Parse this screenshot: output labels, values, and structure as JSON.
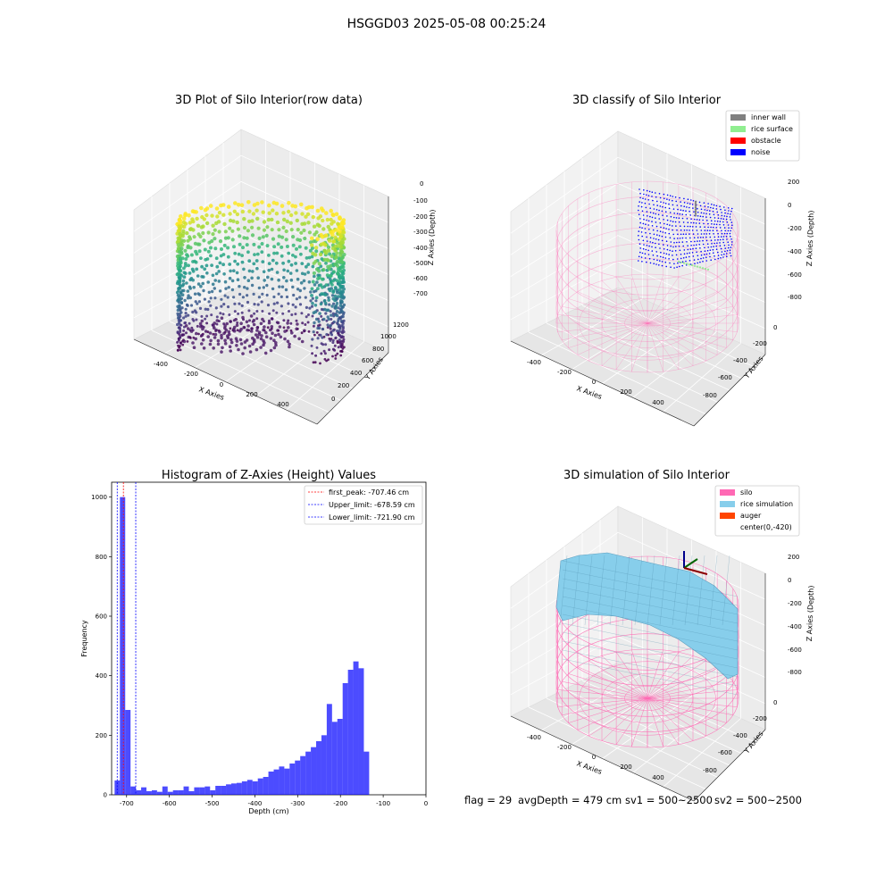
{
  "figure_title": "HSGGD03 2025-05-08 00:25:24",
  "footer": {
    "flag": "flag = 29",
    "avg_depth": "avgDepth = 479 cm",
    "sv1": "sv1 = 500~2500",
    "sv2": "sv2 = 500~2500"
  },
  "colors": {
    "inner_wall": "#808080",
    "rice_surface": "#90ee90",
    "obstacle": "#ff0000",
    "noise": "#0000ff",
    "silo": "#ff69b4",
    "rice_simulation": "#87ceeb",
    "auger": "#ff4500",
    "histogram_bars": "#0000ff",
    "first_peak_line": "#ff0000",
    "limit_lines": "#0000ff"
  },
  "chart_data": [
    {
      "type": "scatter",
      "panel": "3d-raw",
      "title": "3D Plot of Silo Interior(row data)",
      "xlabel": "X Axies",
      "ylabel": "Y Axies",
      "zlabel": "Z Axies (Depth)",
      "x_ticks": [
        "-400",
        "-200",
        "0",
        "200",
        "400"
      ],
      "y_ticks": [
        "0",
        "200",
        "400",
        "600",
        "800",
        "1000",
        "1200"
      ],
      "z_ticks": [
        "0",
        "-100",
        "-200",
        "-300",
        "-400",
        "-500",
        "-600",
        "-700"
      ],
      "colormap": "viridis",
      "zlim": [
        -750,
        0
      ]
    },
    {
      "type": "scatter",
      "panel": "3d-classify",
      "title": "3D classify of Silo Interior",
      "xlabel": "X Axies",
      "ylabel": "Y Axies",
      "zlabel": "Z Axies (Depth)",
      "x_ticks": [
        "-400",
        "-200",
        "0",
        "200",
        "400"
      ],
      "y_ticks": [
        "0",
        "-200",
        "-400",
        "-600",
        "-800"
      ],
      "z_ticks": [
        "200",
        "0",
        "-200",
        "-400",
        "-600",
        "-800"
      ],
      "legend": [
        "inner wall",
        "rice surface",
        "obstacle",
        "noise"
      ],
      "legend_position": "top-right"
    },
    {
      "type": "bar",
      "panel": "histogram",
      "title": "Histogram of Z-Axies (Height) Values",
      "xlabel": "Depth (cm)",
      "ylabel": "Frequency",
      "xlim": [
        -735,
        0
      ],
      "ylim": [
        0,
        1050
      ],
      "x_ticks": [
        "-700",
        "-600",
        "-500",
        "-400",
        "-300",
        "-200",
        "-100",
        "0"
      ],
      "y_ticks": [
        "0",
        "200",
        "400",
        "600",
        "800",
        "1000"
      ],
      "bin_start": -728,
      "bin_width": 12.4,
      "values": [
        48,
        1000,
        285,
        28,
        15,
        25,
        12,
        15,
        10,
        28,
        10,
        15,
        15,
        28,
        12,
        25,
        25,
        28,
        15,
        30,
        30,
        35,
        38,
        40,
        45,
        50,
        45,
        55,
        60,
        78,
        85,
        95,
        88,
        105,
        115,
        130,
        145,
        160,
        180,
        200,
        305,
        245,
        255,
        375,
        420,
        448,
        425,
        145
      ],
      "lines": [
        {
          "label": "first_peak: -707.46 cm",
          "x": -707.46,
          "style": "dashed",
          "color": "#ff0000"
        },
        {
          "label": "Upper_limit: -678.59 cm",
          "x": -678.59,
          "style": "dashed",
          "color": "#0000ff"
        },
        {
          "label": "Lower_limit: -721.90 cm",
          "x": -721.9,
          "style": "dashed",
          "color": "#0000ff"
        }
      ],
      "legend_position": "top-right"
    },
    {
      "type": "surface",
      "panel": "3d-simulation",
      "title": "3D simulation of Silo Interior",
      "xlabel": "X Axies",
      "ylabel": "Y Axies",
      "zlabel": "Z Axies (Depth)",
      "x_ticks": [
        "-400",
        "-200",
        "0",
        "200",
        "400"
      ],
      "y_ticks": [
        "0",
        "-200",
        "-400",
        "-600",
        "-800"
      ],
      "z_ticks": [
        "200",
        "0",
        "-200",
        "-400",
        "-600",
        "-800"
      ],
      "legend": [
        "silo",
        "rice simulation",
        "auger",
        "center(0,-420)"
      ],
      "legend_position": "top-right"
    }
  ]
}
